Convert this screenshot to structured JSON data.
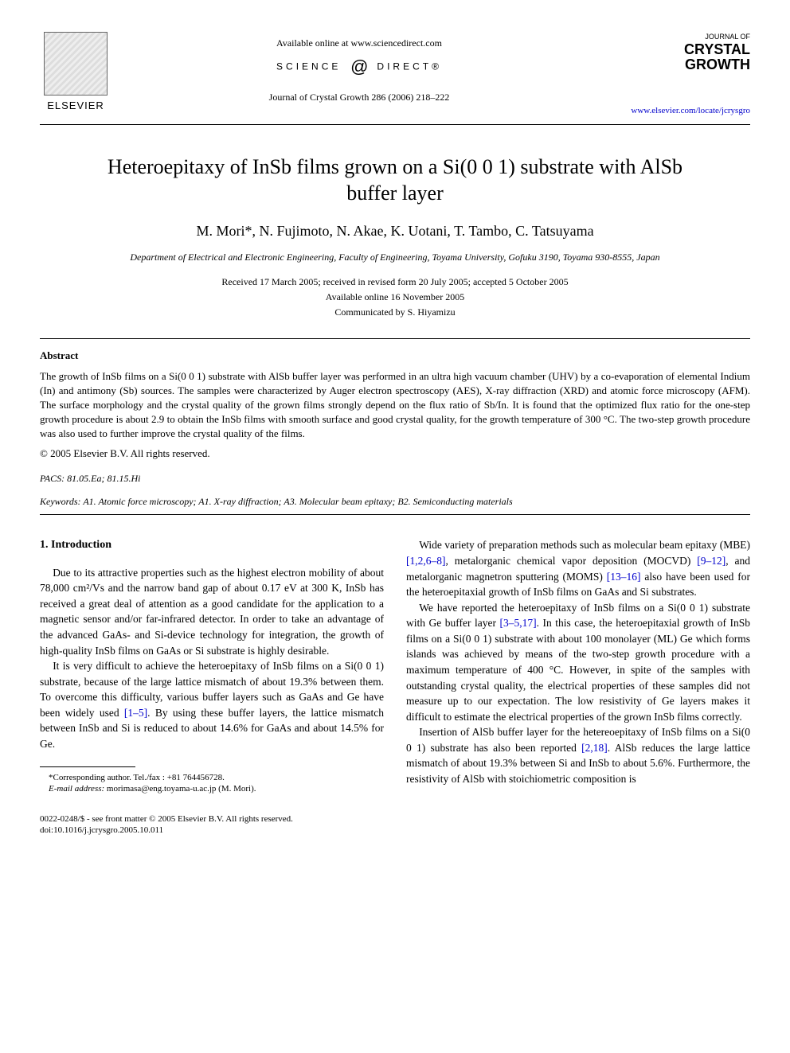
{
  "header": {
    "elsevier": "ELSEVIER",
    "available_online": "Available online at www.sciencedirect.com",
    "science": "SCIENCE",
    "direct": "DIRECT®",
    "journal_ref": "Journal of Crystal Growth 286 (2006) 218–222",
    "journal_of": "JOURNAL OF",
    "crystal": "CRYSTAL",
    "growth": "GROWTH",
    "journal_link": "www.elsevier.com/locate/jcrysgro"
  },
  "title": "Heteroepitaxy of InSb films grown on a Si(0 0 1) substrate with AlSb buffer layer",
  "authors": "M. Mori*, N. Fujimoto, N. Akae, K. Uotani, T. Tambo, C. Tatsuyama",
  "affiliation": "Department of Electrical and Electronic Engineering, Faculty of Engineering, Toyama University, Gofuku 3190, Toyama 930-8555, Japan",
  "dates_line1": "Received 17 March 2005; received in revised form 20 July 2005; accepted 5 October 2005",
  "dates_line2": "Available online 16 November 2005",
  "communicated": "Communicated by S. Hiyamizu",
  "abstract_label": "Abstract",
  "abstract": "The growth of InSb films on a Si(0 0 1) substrate with AlSb buffer layer was performed in an ultra high vacuum chamber (UHV) by a co-evaporation of elemental Indium (In) and antimony (Sb) sources. The samples were characterized by Auger electron spectroscopy (AES), X-ray diffraction (XRD) and atomic force microscopy (AFM). The surface morphology and the crystal quality of the grown films strongly depend on the flux ratio of Sb/In. It is found that the optimized flux ratio for the one-step growth procedure is about 2.9 to obtain the InSb films with smooth surface and good crystal quality, for the growth temperature of 300 °C. The two-step growth procedure was also used to further improve the crystal quality of the films.",
  "copyright": "© 2005 Elsevier B.V. All rights reserved.",
  "pacs": "PACS: 81.05.Ea; 81.15.Hi",
  "keywords": "Keywords: A1. Atomic force microscopy; A1. X-ray diffraction; A3. Molecular beam epitaxy; B2. Semiconducting materials",
  "section1_heading": "1. Introduction",
  "col_left": {
    "p1": "Due to its attractive properties such as the highest electron mobility of about 78,000 cm²/Vs and the narrow band gap of about 0.17 eV at 300 K, InSb has received a great deal of attention as a good candidate for the application to a magnetic sensor and/or far-infrared detector. In order to take an advantage of the advanced GaAs- and Si-device technology for integration, the growth of high-quality InSb films on GaAs or Si substrate is highly desirable.",
    "p2a": "It is very difficult to achieve the heteroepitaxy of InSb films on a Si(0 0 1) substrate, because of the large lattice mismatch of about 19.3% between them. To overcome this difficulty, various buffer layers such as GaAs and Ge have been widely used ",
    "p2_ref": "[1–5]",
    "p2b": ". By using these buffer layers, the lattice mismatch between InSb and Si is reduced to about 14.6% for GaAs and about 14.5% for Ge."
  },
  "col_right": {
    "p1a": "Wide variety of preparation methods such as molecular beam epitaxy (MBE) ",
    "p1_ref1": "[1,2,6–8]",
    "p1b": ", metalorganic chemical vapor deposition (MOCVD) ",
    "p1_ref2": "[9–12]",
    "p1c": ", and metalorganic magnetron sputtering (MOMS) ",
    "p1_ref3": "[13–16]",
    "p1d": " also have been used for the heteroepitaxial growth of InSb films on GaAs and Si substrates.",
    "p2a": "We have reported the heteroepitaxy of InSb films on a Si(0 0 1) substrate with Ge buffer layer ",
    "p2_ref": "[3–5,17]",
    "p2b": ". In this case, the heteroepitaxial growth of InSb films on a Si(0 0 1) substrate with about 100 monolayer (ML) Ge which forms islands was achieved by means of the two-step growth procedure with a maximum temperature of 400 °C. However, in spite of the samples with outstanding crystal quality, the electrical properties of these samples did not measure up to our expectation. The low resistivity of Ge layers makes it difficult to estimate the electrical properties of the grown InSb films correctly.",
    "p3a": "Insertion of AlSb buffer layer for the hetereoepitaxy of InSb films on a Si(0 0 1) substrate has also been reported ",
    "p3_ref": "[2,18]",
    "p3b": ". AlSb reduces the large lattice mismatch of about 19.3% between Si and InSb to about 5.6%. Furthermore, the resistivity of AlSb with stoichiometric composition is"
  },
  "footnote": {
    "corr": "*Corresponding author. Tel./fax : +81 764456728.",
    "email_label": "E-mail address:",
    "email": " morimasa@eng.toyama-u.ac.jp (M. Mori)."
  },
  "footer": {
    "line1": "0022-0248/$ - see front matter © 2005 Elsevier B.V. All rights reserved.",
    "line2": "doi:10.1016/j.jcrysgro.2005.10.011"
  },
  "colors": {
    "link": "#0000cc",
    "text": "#000000",
    "bg": "#ffffff"
  }
}
